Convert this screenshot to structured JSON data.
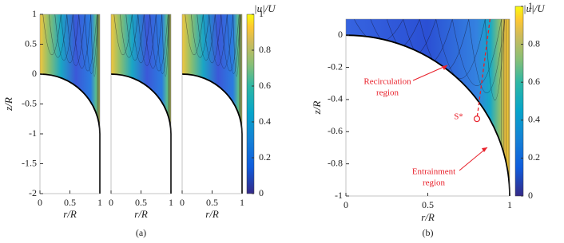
{
  "chart_data": [
    {
      "type": "contour",
      "panels": 3,
      "caption": "(a)",
      "xlabel": "r/R",
      "ylabel": "z/R",
      "xlim": [
        0,
        1
      ],
      "ylim": [
        -2,
        1
      ],
      "xticks": [
        0,
        0.5,
        1
      ],
      "yticks": [
        -2,
        -1.5,
        -1,
        -0.5,
        0,
        0.5,
        1
      ],
      "colorbar": {
        "label": "|u|/U",
        "lim": [
          0,
          1
        ],
        "ticks": [
          0,
          0.2,
          0.4,
          0.6,
          0.8,
          1
        ]
      }
    },
    {
      "type": "contour",
      "panels": 1,
      "caption": "(b)",
      "xlabel": "r/R",
      "ylabel": "z/R",
      "xlim": [
        0,
        1
      ],
      "ylim": [
        -1,
        0.1
      ],
      "xticks": [
        0,
        0.5,
        1
      ],
      "yticks": [
        -1,
        -0.8,
        -0.6,
        -0.4,
        -0.2,
        0
      ],
      "colorbar": {
        "label": "|u|/U",
        "lim": [
          0,
          1
        ],
        "ticks": [
          0,
          0.2,
          0.4,
          0.6,
          0.8,
          1
        ]
      },
      "annotations": [
        [
          "Recirculation",
          "region"
        ],
        [
          "Entrainment",
          "region"
        ],
        [
          "S*"
        ]
      ],
      "annotation_color": "#e8202a"
    }
  ]
}
